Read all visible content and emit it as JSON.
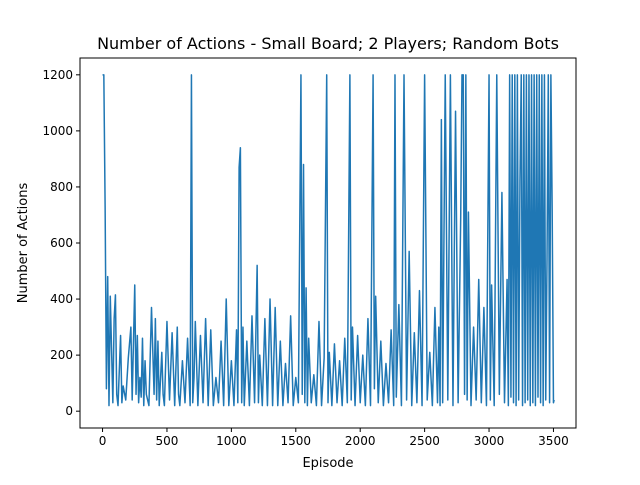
{
  "chart_data": {
    "type": "line",
    "title": "Number of Actions - Small Board; 2 Players; Random Bots",
    "xlabel": "Episode",
    "ylabel": "Number of Actions",
    "xlim": [
      -175,
      3675
    ],
    "ylim": [
      -60,
      1260
    ],
    "xticks": [
      0,
      500,
      1000,
      1500,
      2000,
      2500,
      3000,
      3500
    ],
    "yticks": [
      0,
      200,
      400,
      600,
      800,
      1000,
      1200
    ],
    "grid": false,
    "series": [
      {
        "color": "#1f77b4",
        "x": [
          0,
          10,
          20,
          30,
          40,
          50,
          60,
          80,
          90,
          100,
          110,
          120,
          140,
          150,
          160,
          180,
          200,
          220,
          230,
          250,
          260,
          270,
          280,
          290,
          300,
          310,
          320,
          330,
          340,
          360,
          380,
          400,
          410,
          420,
          430,
          440,
          460,
          470,
          480,
          500,
          520,
          540,
          560,
          580,
          590,
          600,
          620,
          640,
          660,
          680,
          690,
          700,
          710,
          720,
          740,
          760,
          780,
          800,
          820,
          840,
          860,
          880,
          900,
          920,
          940,
          960,
          980,
          1000,
          1020,
          1040,
          1050,
          1060,
          1070,
          1080,
          1090,
          1100,
          1120,
          1140,
          1160,
          1180,
          1200,
          1210,
          1220,
          1240,
          1260,
          1280,
          1300,
          1320,
          1340,
          1360,
          1380,
          1400,
          1420,
          1440,
          1460,
          1480,
          1500,
          1520,
          1540,
          1550,
          1560,
          1570,
          1580,
          1590,
          1600,
          1620,
          1640,
          1660,
          1680,
          1700,
          1720,
          1740,
          1750,
          1760,
          1780,
          1800,
          1820,
          1840,
          1860,
          1880,
          1900,
          1920,
          1930,
          1940,
          1960,
          1980,
          2000,
          2020,
          2040,
          2060,
          2080,
          2100,
          2110,
          2120,
          2140,
          2160,
          2180,
          2200,
          2220,
          2240,
          2260,
          2270,
          2280,
          2300,
          2320,
          2340,
          2360,
          2380,
          2400,
          2420,
          2440,
          2460,
          2480,
          2500,
          2520,
          2540,
          2560,
          2580,
          2600,
          2610,
          2620,
          2630,
          2640,
          2660,
          2680,
          2700,
          2720,
          2740,
          2760,
          2780,
          2790,
          2800,
          2810,
          2820,
          2830,
          2840,
          2860,
          2880,
          2900,
          2920,
          2940,
          2960,
          2980,
          3000,
          3010,
          3020,
          3040,
          3060,
          3080,
          3100,
          3120,
          3140,
          3150,
          3160,
          3170,
          3180,
          3190,
          3200,
          3210,
          3220,
          3230,
          3240,
          3250,
          3260,
          3270,
          3280,
          3290,
          3300,
          3310,
          3320,
          3330,
          3340,
          3350,
          3360,
          3370,
          3380,
          3390,
          3400,
          3410,
          3420,
          3430,
          3440,
          3450,
          3460,
          3470,
          3480,
          3490,
          3500,
          3505
        ],
        "y": [
          1200,
          1200,
          730,
          80,
          480,
          20,
          410,
          30,
          330,
          415,
          60,
          20,
          270,
          30,
          90,
          40,
          190,
          300,
          40,
          450,
          60,
          270,
          30,
          120,
          50,
          260,
          20,
          180,
          60,
          20,
          370,
          60,
          330,
          40,
          250,
          20,
          210,
          60,
          20,
          320,
          40,
          280,
          20,
          300,
          60,
          20,
          180,
          30,
          260,
          20,
          1200,
          30,
          120,
          320,
          20,
          270,
          30,
          330,
          20,
          290,
          20,
          120,
          30,
          250,
          20,
          400,
          20,
          180,
          20,
          290,
          30,
          870,
          940,
          30,
          300,
          20,
          250,
          20,
          340,
          30,
          520,
          30,
          200,
          20,
          330,
          20,
          400,
          20,
          370,
          20,
          250,
          20,
          170,
          30,
          340,
          20,
          120,
          30,
          1200,
          60,
          880,
          30,
          440,
          20,
          260,
          30,
          130,
          20,
          320,
          20,
          190,
          1200,
          30,
          210,
          20,
          240,
          30,
          180,
          20,
          260,
          30,
          1200,
          40,
          300,
          20,
          270,
          30,
          200,
          20,
          330,
          20,
          1200,
          80,
          410,
          30,
          250,
          20,
          170,
          30,
          290,
          20,
          1200,
          50,
          380,
          20,
          1200,
          40,
          570,
          20,
          280,
          30,
          430,
          20,
          1200,
          40,
          210,
          20,
          370,
          30,
          300,
          20,
          1040,
          30,
          1200,
          40,
          1200,
          20,
          1070,
          30,
          690,
          1200,
          1200,
          60,
          1200,
          40,
          710,
          20,
          300,
          40,
          470,
          30,
          370,
          20,
          1200,
          40,
          450,
          20,
          1200,
          60,
          780,
          30,
          470,
          20,
          1200,
          50,
          1200,
          30,
          1200,
          20,
          1200,
          40,
          820,
          1200,
          20,
          1200,
          30,
          1200,
          40,
          1200,
          20,
          1200,
          30,
          1200,
          20,
          1200,
          50,
          1200,
          30,
          1200,
          20,
          1200,
          40,
          540,
          1200,
          30,
          1200,
          720,
          30,
          40
        ]
      }
    ]
  }
}
